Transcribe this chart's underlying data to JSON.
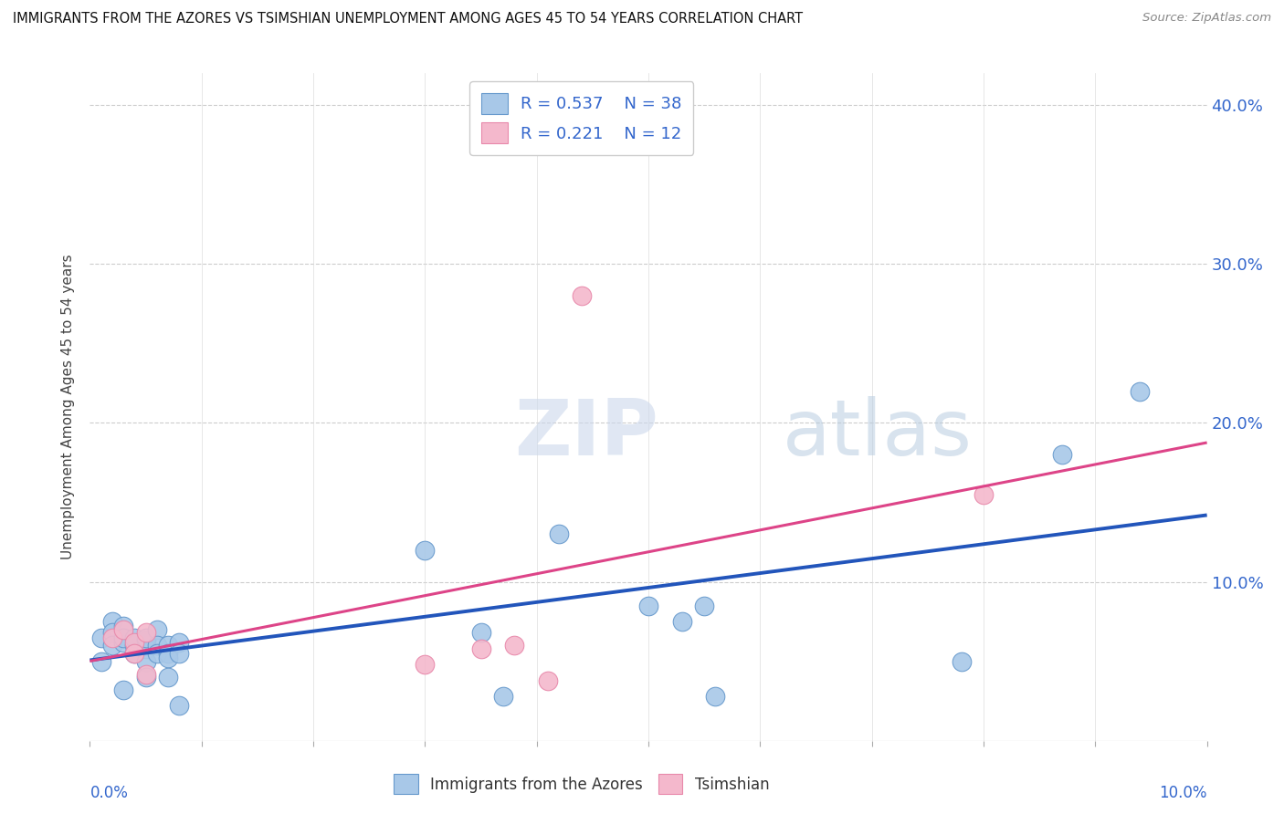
{
  "title": "IMMIGRANTS FROM THE AZORES VS TSIMSHIAN UNEMPLOYMENT AMONG AGES 45 TO 54 YEARS CORRELATION CHART",
  "source": "Source: ZipAtlas.com",
  "ylabel": "Unemployment Among Ages 45 to 54 years",
  "yticks": [
    0.0,
    0.1,
    0.2,
    0.3,
    0.4
  ],
  "ytick_labels": [
    "",
    "10.0%",
    "20.0%",
    "30.0%",
    "40.0%"
  ],
  "xlim": [
    0.0,
    0.1
  ],
  "ylim": [
    0.0,
    0.42
  ],
  "watermark_zip": "ZIP",
  "watermark_atlas": "atlas",
  "blue_color": "#a8c8e8",
  "pink_color": "#f4b8cc",
  "blue_edge_color": "#6699cc",
  "pink_edge_color": "#e888aa",
  "blue_line_color": "#2255bb",
  "pink_line_color": "#dd4488",
  "text_blue_color": "#3366cc",
  "blue_scatter": [
    [
      0.001,
      0.065
    ],
    [
      0.001,
      0.05
    ],
    [
      0.002,
      0.075
    ],
    [
      0.002,
      0.068
    ],
    [
      0.002,
      0.06
    ],
    [
      0.003,
      0.062
    ],
    [
      0.003,
      0.072
    ],
    [
      0.003,
      0.065
    ],
    [
      0.003,
      0.032
    ],
    [
      0.004,
      0.06
    ],
    [
      0.004,
      0.055
    ],
    [
      0.004,
      0.065
    ],
    [
      0.005,
      0.063
    ],
    [
      0.005,
      0.058
    ],
    [
      0.005,
      0.065
    ],
    [
      0.005,
      0.05
    ],
    [
      0.005,
      0.04
    ],
    [
      0.006,
      0.07
    ],
    [
      0.006,
      0.06
    ],
    [
      0.006,
      0.055
    ],
    [
      0.007,
      0.06
    ],
    [
      0.007,
      0.055
    ],
    [
      0.007,
      0.052
    ],
    [
      0.007,
      0.04
    ],
    [
      0.008,
      0.062
    ],
    [
      0.008,
      0.055
    ],
    [
      0.008,
      0.022
    ],
    [
      0.03,
      0.12
    ],
    [
      0.035,
      0.068
    ],
    [
      0.037,
      0.028
    ],
    [
      0.042,
      0.13
    ],
    [
      0.05,
      0.085
    ],
    [
      0.053,
      0.075
    ],
    [
      0.055,
      0.085
    ],
    [
      0.056,
      0.028
    ],
    [
      0.078,
      0.05
    ],
    [
      0.087,
      0.18
    ],
    [
      0.094,
      0.22
    ]
  ],
  "pink_scatter": [
    [
      0.002,
      0.065
    ],
    [
      0.003,
      0.07
    ],
    [
      0.004,
      0.062
    ],
    [
      0.004,
      0.055
    ],
    [
      0.005,
      0.068
    ],
    [
      0.005,
      0.042
    ],
    [
      0.03,
      0.048
    ],
    [
      0.035,
      0.058
    ],
    [
      0.038,
      0.06
    ],
    [
      0.041,
      0.038
    ],
    [
      0.044,
      0.28
    ],
    [
      0.08,
      0.155
    ]
  ]
}
